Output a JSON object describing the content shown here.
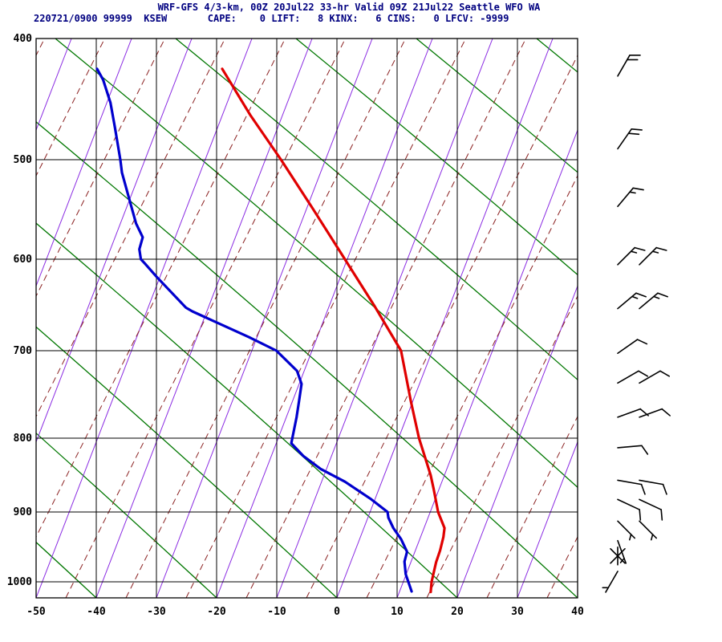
{
  "header": {
    "title": "WRF-GFS 4/3-km, 00Z 20Jul22 33-hr Valid 09Z 21Jul22 Seattle WFO WA",
    "station_line": "220721/0900 99999  KSEW       CAPE:    0 LIFT:   8 KINX:   6 CINS:   0 LFCV: -9999",
    "title_color": "#000080"
  },
  "axes": {
    "pressure_ticks": [
      400,
      500,
      600,
      700,
      800,
      900,
      1000
    ],
    "temp_ticks": [
      -50,
      -40,
      -30,
      -20,
      -10,
      0,
      10,
      20,
      30,
      40
    ]
  },
  "chart_data": {
    "type": "line",
    "chart_kind": "skew-t-log-p-sounding",
    "title": "WRF-GFS 4/3-km, 00Z 20Jul22 33-hr Valid 09Z 21Jul22 Seattle WFO WA",
    "station": {
      "id": "KSEW",
      "number": "99999",
      "datetime": "220721/0900"
    },
    "indices": {
      "CAPE": 0,
      "LIFT": 8,
      "KINX": 6,
      "CINS": 0,
      "LFCV": -9999
    },
    "x_axis": {
      "units": "C",
      "range": [
        -50,
        40
      ],
      "tick_step": 10
    },
    "y_axis": {
      "units": "mb",
      "scale": "log-p",
      "range": [
        1035,
        400
      ]
    },
    "series": [
      {
        "name": "temperature",
        "color": "#e00000",
        "points": [
          [
            1022,
            15.2
          ],
          [
            1000,
            14.7
          ],
          [
            972,
            14.2
          ],
          [
            955,
            14.1
          ],
          [
            936,
            13.8
          ],
          [
            923,
            13.4
          ],
          [
            900,
            11.3
          ],
          [
            869,
            9.1
          ],
          [
            850,
            7.7
          ],
          [
            800,
            3.4
          ],
          [
            758,
            -0.3
          ],
          [
            700,
            -5.2
          ],
          [
            651,
            -12.5
          ],
          [
            600,
            -20.4
          ],
          [
            549,
            -29.0
          ],
          [
            500,
            -37.4
          ],
          [
            463,
            -45.4
          ],
          [
            425,
            -53.0
          ]
        ]
      },
      {
        "name": "dewpoint",
        "color": "#0000cd",
        "points": [
          [
            1021,
            12.0
          ],
          [
            989,
            9.9
          ],
          [
            971,
            8.9
          ],
          [
            957,
            8.7
          ],
          [
            939,
            6.9
          ],
          [
            923,
            4.9
          ],
          [
            908,
            3.4
          ],
          [
            900,
            2.9
          ],
          [
            882,
            -0.8
          ],
          [
            859,
            -6.1
          ],
          [
            842,
            -10.9
          ],
          [
            824,
            -14.7
          ],
          [
            807,
            -17.5
          ],
          [
            776,
            -18.3
          ],
          [
            758,
            -18.9
          ],
          [
            738,
            -19.6
          ],
          [
            723,
            -21.2
          ],
          [
            700,
            -25.9
          ],
          [
            685,
            -31.4
          ],
          [
            669,
            -37.7
          ],
          [
            657,
            -42.4
          ],
          [
            653,
            -43.7
          ],
          [
            619,
            -50.6
          ],
          [
            604,
            -53.5
          ],
          [
            600,
            -54.3
          ],
          [
            590,
            -55.2
          ],
          [
            578,
            -55.4
          ],
          [
            564,
            -57.4
          ],
          [
            545,
            -59.5
          ],
          [
            513,
            -63.0
          ],
          [
            500,
            -64.1
          ],
          [
            474,
            -67.0
          ],
          [
            453,
            -69.4
          ],
          [
            434,
            -72.1
          ],
          [
            425,
            -73.8
          ]
        ]
      }
    ],
    "wind_barbs": [
      {
        "p": 431,
        "dir": 30,
        "spd": 20,
        "n": 1
      },
      {
        "p": 491,
        "dir": 35,
        "spd": 20,
        "n": 1
      },
      {
        "p": 547,
        "dir": 40,
        "spd": 15,
        "n": 1
      },
      {
        "p": 606,
        "dir": 45,
        "spd": 15,
        "n": 2
      },
      {
        "p": 654,
        "dir": 50,
        "spd": 15,
        "n": 2
      },
      {
        "p": 703,
        "dir": 55,
        "spd": 10,
        "n": 1
      },
      {
        "p": 737,
        "dir": 60,
        "spd": 10,
        "n": 2
      },
      {
        "p": 776,
        "dir": 70,
        "spd": 10,
        "n": 2
      },
      {
        "p": 813,
        "dir": 85,
        "spd": 10,
        "n": 1
      },
      {
        "p": 857,
        "dir": 100,
        "spd": 10,
        "n": 2
      },
      {
        "p": 883,
        "dir": 115,
        "spd": 10,
        "n": 2
      },
      {
        "p": 913,
        "dir": 135,
        "spd": 5,
        "n": 2
      },
      {
        "p": 941,
        "dir": 160,
        "spd": 5,
        "n": 1
      },
      {
        "p": 963,
        "dir": 0,
        "spd": 0,
        "n": 1
      },
      {
        "p": 985,
        "dir": 210,
        "spd": 5,
        "n": 1
      }
    ],
    "background_lines": {
      "isotherms_color": "#8a2be2",
      "dry_adiabats_color": "#007700",
      "moist_adiabats_color": "#8b2222",
      "grid_color": "#000000",
      "barb_color": "#000000"
    }
  }
}
